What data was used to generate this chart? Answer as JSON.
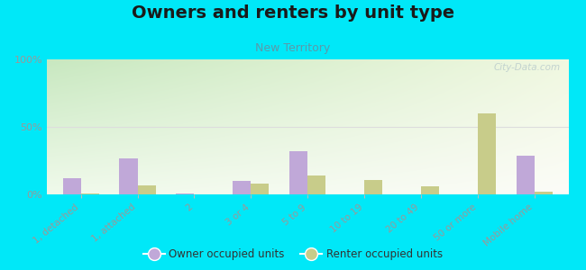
{
  "title": "Owners and renters by unit type",
  "subtitle": "New Territory",
  "categories": [
    "1, detached",
    "1, attached",
    "2",
    "3 or 4",
    "5 to 9",
    "10 to 19",
    "20 to 49",
    "50 or more",
    "Mobile home"
  ],
  "owner_values": [
    12,
    27,
    1,
    10,
    32,
    0,
    0,
    0,
    29
  ],
  "renter_values": [
    1,
    7,
    0,
    8,
    14,
    11,
    6,
    60,
    2
  ],
  "owner_color": "#c0a8d8",
  "renter_color": "#c8cc8a",
  "bg_color_topleft": "#c8e8c0",
  "bg_color_center": "#f0f5e8",
  "bg_color_right": "#f8f8f0",
  "outer_bg": "#00e8f8",
  "yticks": [
    0,
    50,
    100
  ],
  "ylim": [
    0,
    100
  ],
  "watermark": "City-Data.com",
  "title_fontsize": 14,
  "subtitle_fontsize": 9,
  "tick_label_color": "#999999",
  "grid_color": "#dddddd"
}
